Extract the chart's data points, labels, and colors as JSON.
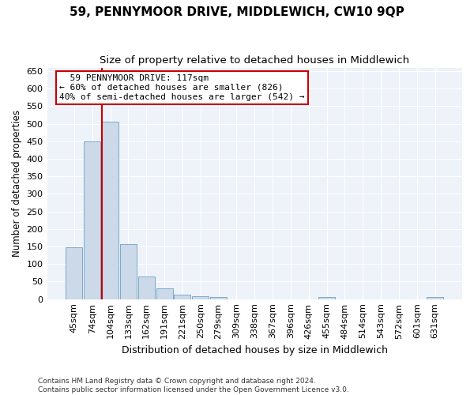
{
  "title": "59, PENNYMOOR DRIVE, MIDDLEWICH, CW10 9QP",
  "subtitle": "Size of property relative to detached houses in Middlewich",
  "xlabel": "Distribution of detached houses by size in Middlewich",
  "ylabel": "Number of detached properties",
  "categories": [
    "45sqm",
    "74sqm",
    "104sqm",
    "133sqm",
    "162sqm",
    "191sqm",
    "221sqm",
    "250sqm",
    "279sqm",
    "309sqm",
    "338sqm",
    "367sqm",
    "396sqm",
    "426sqm",
    "455sqm",
    "484sqm",
    "514sqm",
    "543sqm",
    "572sqm",
    "601sqm",
    "631sqm"
  ],
  "values": [
    147,
    450,
    507,
    158,
    65,
    30,
    13,
    8,
    5,
    0,
    0,
    0,
    0,
    0,
    5,
    0,
    0,
    0,
    0,
    0,
    5
  ],
  "bar_color": "#ccd9e8",
  "bar_edge_color": "#7aaac8",
  "vline_color": "#cc0000",
  "annotation_text": "  59 PENNYMOOR DRIVE: 117sqm\n← 60% of detached houses are smaller (826)\n40% of semi-detached houses are larger (542) →",
  "annotation_box_color": "#ffffff",
  "annotation_box_edge": "#cc0000",
  "ylim": [
    0,
    660
  ],
  "yticks": [
    0,
    50,
    100,
    150,
    200,
    250,
    300,
    350,
    400,
    450,
    500,
    550,
    600,
    650
  ],
  "footnote": "Contains HM Land Registry data © Crown copyright and database right 2024.\nContains public sector information licensed under the Open Government Licence v3.0.",
  "background_color": "#eef2f9",
  "grid_color": "#ffffff",
  "title_fontsize": 11,
  "subtitle_fontsize": 9.5,
  "tick_fontsize": 8,
  "ylabel_fontsize": 8.5,
  "xlabel_fontsize": 9
}
